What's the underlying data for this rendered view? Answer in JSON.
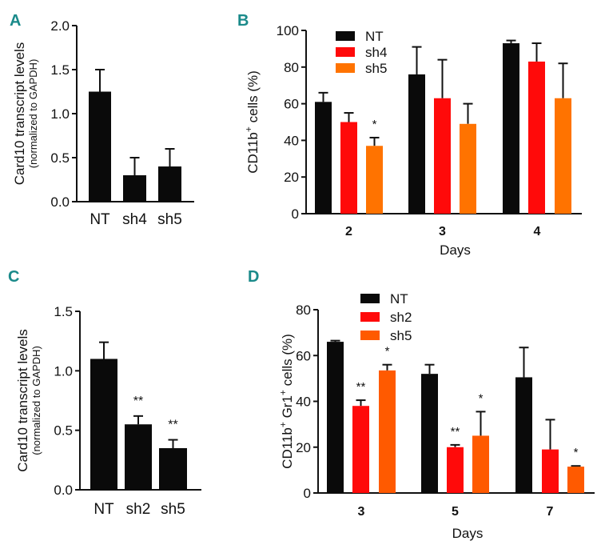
{
  "colors": {
    "NT": "#0a0a0a",
    "sh4": "#ff0a0a",
    "sh2": "#ff0a0a",
    "sh5": "#ff7300",
    "sh5_D": "#ff5a00",
    "panel_label": "#1a8a8a"
  },
  "chart_data": [
    {
      "panel": "A",
      "type": "bar",
      "categories": [
        "NT",
        "sh4",
        "sh5"
      ],
      "values": [
        1.25,
        0.3,
        0.4
      ],
      "errors": [
        0.25,
        0.2,
        0.2
      ],
      "significance": [
        "",
        "",
        ""
      ],
      "ylabel": "Card10 transcript levels",
      "ylabel_sub": "(normalized to GAPDH)",
      "ylim": [
        0,
        2.0
      ],
      "yticks": [
        "0.0",
        "0.5",
        "1.0",
        "1.5",
        "2.0"
      ],
      "xlabel": ""
    },
    {
      "panel": "B",
      "type": "bar",
      "categories": [
        "2",
        "3",
        "4"
      ],
      "xlabel": "Days",
      "ylabel": "CD11b",
      "ylabel_sup": "+",
      "ylabel_tail": " cells (%)",
      "ylim": [
        0,
        100
      ],
      "yticks": [
        "0",
        "20",
        "40",
        "60",
        "80",
        "100"
      ],
      "legend_position": "top-left",
      "series": [
        {
          "name": "NT",
          "values": [
            61,
            76,
            93
          ],
          "errors": [
            5,
            15,
            1.5
          ],
          "significance": [
            "",
            "",
            ""
          ]
        },
        {
          "name": "sh4",
          "values": [
            50,
            63,
            83
          ],
          "errors": [
            5,
            21,
            10
          ],
          "significance": [
            "",
            "",
            ""
          ]
        },
        {
          "name": "sh5",
          "values": [
            37,
            49,
            63
          ],
          "errors": [
            4.5,
            11,
            19
          ],
          "significance": [
            "*",
            "",
            ""
          ]
        }
      ]
    },
    {
      "panel": "C",
      "type": "bar",
      "categories": [
        "NT",
        "sh2",
        "sh5"
      ],
      "values": [
        1.1,
        0.55,
        0.35
      ],
      "errors": [
        0.14,
        0.07,
        0.07
      ],
      "significance": [
        "",
        "**",
        "**"
      ],
      "ylabel": "Card10 transcript levels",
      "ylabel_sub": "(normalized to GAPDH)",
      "ylim": [
        0,
        1.5
      ],
      "yticks": [
        "0.0",
        "0.5",
        "1.0",
        "1.5"
      ],
      "xlabel": ""
    },
    {
      "panel": "D",
      "type": "bar",
      "categories": [
        "3",
        "5",
        "7"
      ],
      "xlabel": "Days",
      "ylabel": "CD11b",
      "ylabel_sup": "+",
      "ylabel_mid": " Gr1",
      "ylabel_sup2": "+",
      "ylabel_tail": " cells  (%)",
      "ylim": [
        0,
        80
      ],
      "yticks": [
        "0",
        "20",
        "40",
        "60",
        "80"
      ],
      "legend_position": "top-left",
      "series": [
        {
          "name": "NT",
          "values": [
            66,
            52,
            50.5
          ],
          "errors": [
            0.5,
            4,
            13
          ],
          "significance": [
            "",
            "",
            ""
          ]
        },
        {
          "name": "sh2",
          "values": [
            38,
            20,
            19
          ],
          "errors": [
            2.5,
            1,
            13
          ],
          "significance": [
            "**",
            "**",
            ""
          ]
        },
        {
          "name": "sh5",
          "values": [
            53.5,
            25,
            11.5
          ],
          "errors": [
            2.5,
            10.5,
            0.3
          ],
          "significance": [
            "*",
            "*",
            "*"
          ]
        }
      ]
    }
  ]
}
